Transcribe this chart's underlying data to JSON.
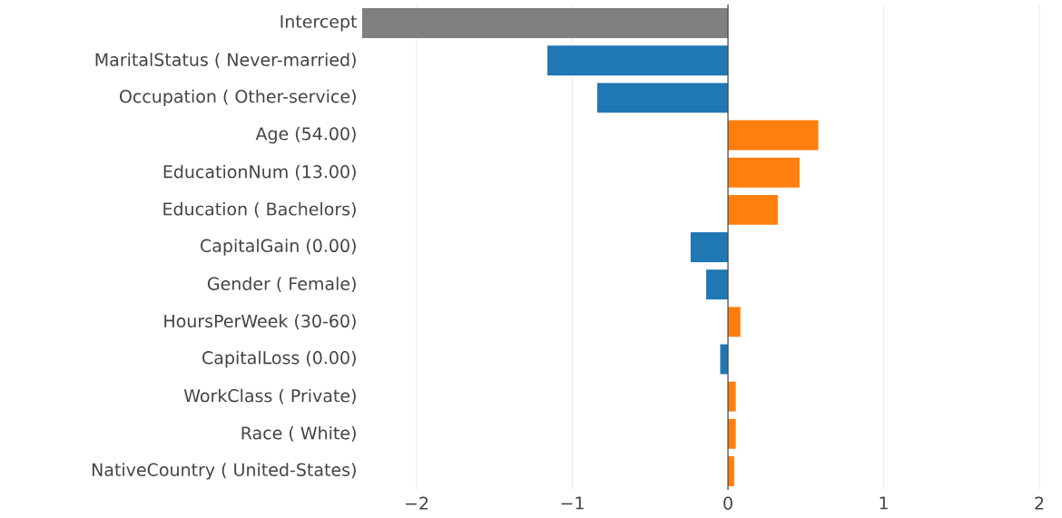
{
  "chart_data": {
    "type": "bar",
    "orientation": "horizontal",
    "categories": [
      "Intercept",
      "MaritalStatus ( Never-married)",
      "Occupation ( Other-service)",
      "Age (54.00)",
      "EducationNum (13.00)",
      "Education ( Bachelors)",
      "CapitalGain (0.00)",
      "Gender ( Female)",
      "HoursPerWeek (30-60)",
      "CapitalLoss (0.00)",
      "WorkClass ( Private)",
      "Race ( White)",
      "NativeCountry ( United-States)"
    ],
    "values": [
      -2.35,
      -1.16,
      -0.84,
      0.58,
      0.46,
      0.32,
      -0.24,
      -0.14,
      0.08,
      -0.05,
      0.05,
      0.05,
      0.04
    ],
    "colors": [
      "#7f7f7f",
      "#1f77b4",
      "#1f77b4",
      "#ff7f0e",
      "#ff7f0e",
      "#ff7f0e",
      "#1f77b4",
      "#1f77b4",
      "#ff7f0e",
      "#1f77b4",
      "#ff7f0e",
      "#ff7f0e",
      "#ff7f0e"
    ],
    "xlim": [
      -2.35,
      2
    ],
    "xticks": [
      {
        "value": -2,
        "label": "−2"
      },
      {
        "value": -1,
        "label": "−1"
      },
      0,
      1,
      2
    ],
    "grid": "x"
  }
}
